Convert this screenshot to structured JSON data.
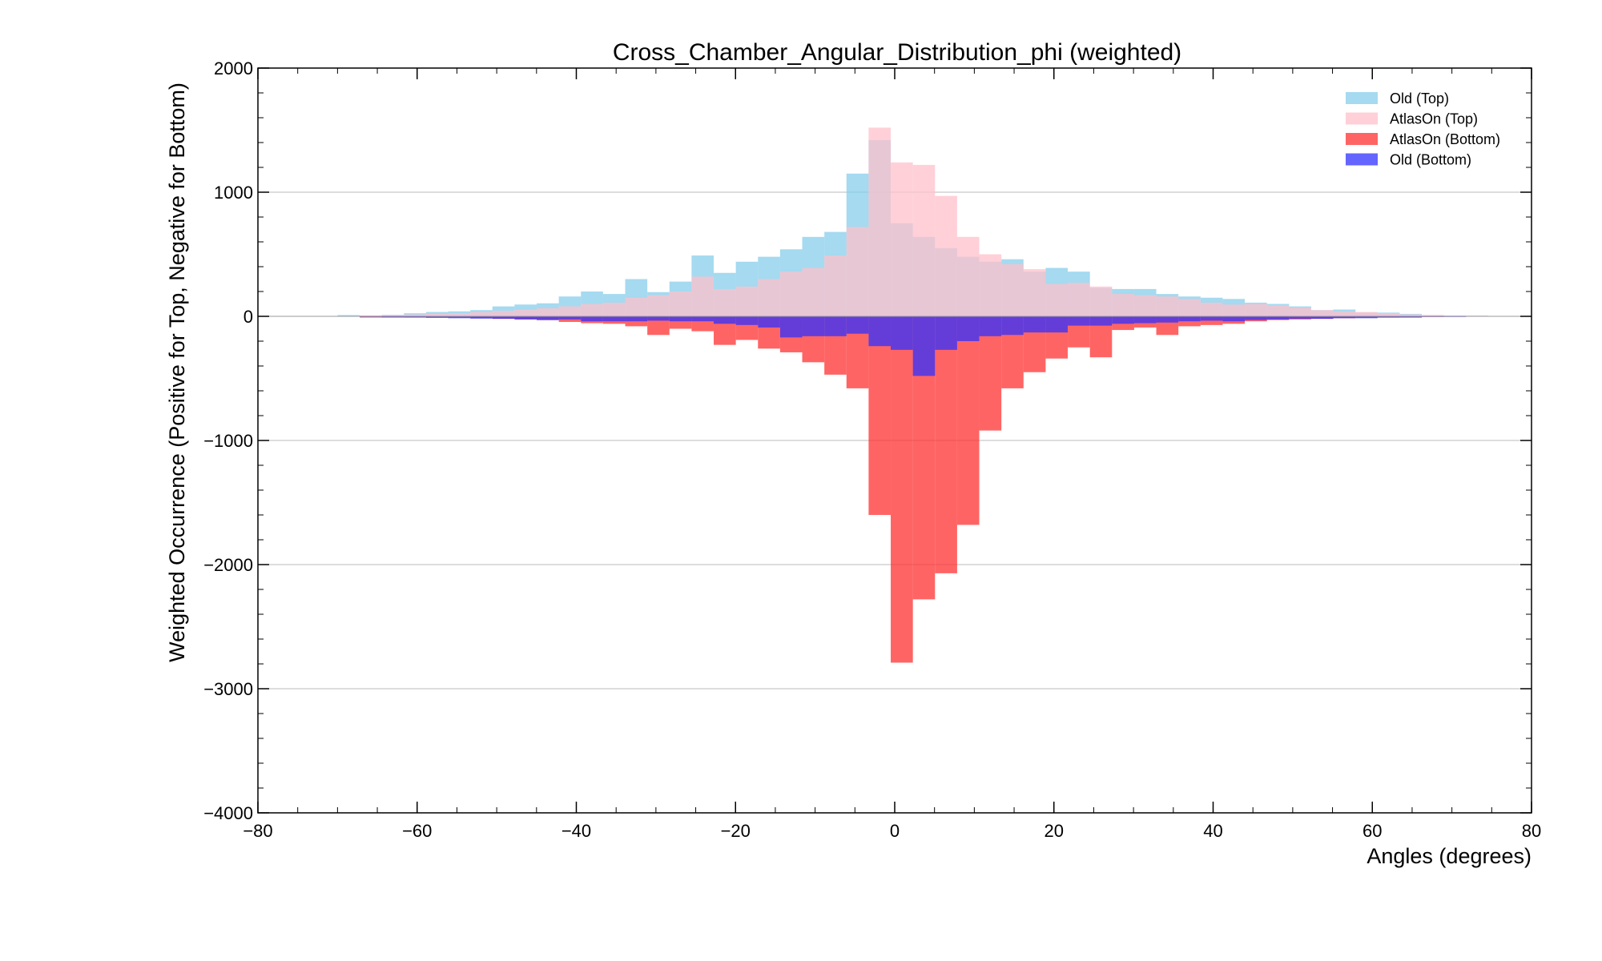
{
  "chart_data": {
    "type": "bar",
    "title": "Cross_Chamber_Angular_Distribution_phi (weighted)",
    "xlabel": "Angles (degrees)",
    "ylabel": "Weighted Occurrence (Positive for Top, Negative for Bottom)",
    "xlim": [
      -80,
      80
    ],
    "ylim": [
      -4000,
      2000
    ],
    "xticks": [
      -80,
      -60,
      -40,
      -20,
      0,
      20,
      40,
      60,
      80
    ],
    "yticks": [
      -4000,
      -3000,
      -2000,
      -1000,
      0,
      1000,
      2000
    ],
    "xtick_labels": [
      "−80",
      "−60",
      "−40",
      "−20",
      "0",
      "20",
      "40",
      "60",
      "80"
    ],
    "ytick_labels": [
      "−4000",
      "−3000",
      "−2000",
      "−1000",
      "0",
      "1000",
      "2000"
    ],
    "grid": "horizontal",
    "legend_position": "top-right",
    "bin_width": 2.78,
    "bin_start": -70.0,
    "series": [
      {
        "name": "Old (Top)",
        "color": "#87ceeb",
        "values": [
          10,
          5,
          12,
          25,
          35,
          40,
          50,
          80,
          95,
          105,
          160,
          200,
          180,
          300,
          195,
          280,
          490,
          350,
          440,
          480,
          540,
          640,
          680,
          1150,
          1420,
          750,
          640,
          550,
          480,
          440,
          460,
          360,
          390,
          360,
          230,
          220,
          220,
          180,
          160,
          150,
          140,
          110,
          100,
          80,
          50,
          55,
          30,
          30,
          20,
          10,
          5,
          5,
          2
        ]
      },
      {
        "name": "AtlasOn (Top)",
        "color": "#ffc0cb",
        "values": [
          3,
          8,
          10,
          15,
          20,
          25,
          35,
          45,
          55,
          65,
          80,
          100,
          110,
          150,
          170,
          200,
          320,
          220,
          240,
          300,
          360,
          390,
          490,
          720,
          1520,
          1240,
          1220,
          970,
          640,
          500,
          420,
          380,
          260,
          270,
          240,
          180,
          170,
          160,
          140,
          110,
          95,
          100,
          90,
          70,
          50,
          40,
          35,
          25,
          15,
          10,
          8,
          5,
          2
        ]
      },
      {
        "name": "AtlasOn (Bottom)",
        "color": "#ff3030",
        "values": [
          -2,
          -10,
          -10,
          -8,
          -10,
          -10,
          -15,
          -20,
          -25,
          -30,
          -45,
          -55,
          -60,
          -80,
          -150,
          -100,
          -120,
          -230,
          -190,
          -260,
          -290,
          -370,
          -470,
          -580,
          -1600,
          -2790,
          -2280,
          -2070,
          -1680,
          -920,
          -580,
          -450,
          -340,
          -250,
          -330,
          -110,
          -90,
          -150,
          -80,
          -70,
          -60,
          -40,
          -30,
          -25,
          -20,
          -15,
          -10,
          -10,
          -8,
          -5,
          -3,
          -2,
          -1
        ]
      },
      {
        "name": "Old (Bottom)",
        "color": "#3030ff",
        "values": [
          -3,
          -5,
          -8,
          -10,
          -12,
          -15,
          -18,
          -20,
          -25,
          -30,
          -25,
          -40,
          -40,
          -40,
          -35,
          -40,
          -40,
          -60,
          -70,
          -90,
          -170,
          -160,
          -160,
          -140,
          -240,
          -270,
          -480,
          -270,
          -200,
          -160,
          -150,
          -130,
          -130,
          -75,
          -75,
          -60,
          -55,
          -50,
          -40,
          -35,
          -40,
          -30,
          -25,
          -20,
          -20,
          -15,
          -15,
          -10,
          -10,
          -5,
          -5,
          -3,
          -2
        ]
      }
    ]
  }
}
